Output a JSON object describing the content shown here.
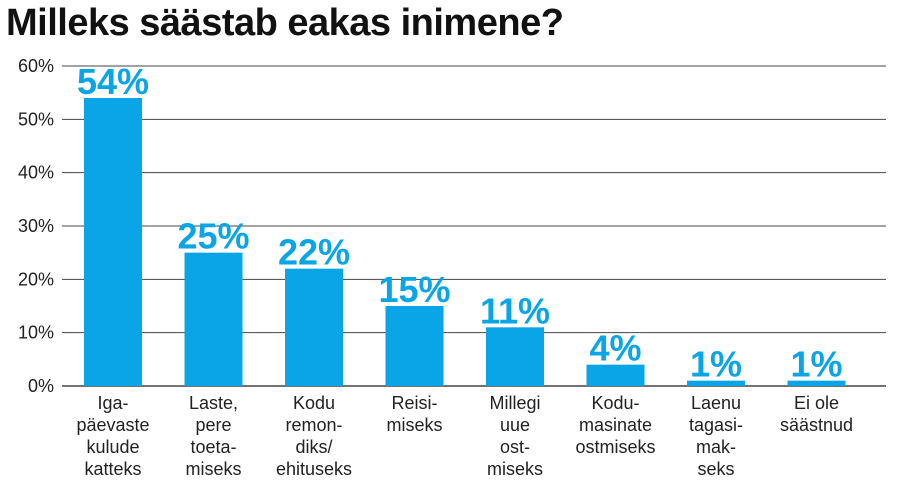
{
  "title": "Milleks säästab eakas inimene?",
  "colors": {
    "bar": "#0aa5e6",
    "grid": "#444444",
    "text": "#222222"
  },
  "chart_data": {
    "type": "bar",
    "title": "Milleks säästab eakas inimene?",
    "xlabel": "",
    "ylabel": "",
    "ylim": [
      0,
      60
    ],
    "yticks": [
      "0%",
      "10%",
      "20%",
      "30%",
      "40%",
      "50%",
      "60%"
    ],
    "grid": true,
    "categories": [
      [
        "Iga-",
        "päevaste",
        "kulude",
        "katteks"
      ],
      [
        "Laste,",
        "pere",
        "toeta-",
        "miseks"
      ],
      [
        "Kodu",
        "remon-",
        "diks/",
        "ehituseks"
      ],
      [
        "Reisi-",
        "miseks"
      ],
      [
        "Millegi",
        "uue",
        "ost-",
        "miseks"
      ],
      [
        "Kodu-",
        "masinate",
        "ostmiseks"
      ],
      [
        "Laenu",
        "tagasi-",
        "mak-",
        "seks"
      ],
      [
        "Ei ole",
        "säästnud"
      ]
    ],
    "values": [
      54,
      25,
      22,
      15,
      11,
      4,
      1,
      1
    ],
    "value_labels": [
      "54%",
      "25%",
      "22%",
      "15%",
      "11%",
      "4%",
      "1%",
      "1%"
    ]
  }
}
